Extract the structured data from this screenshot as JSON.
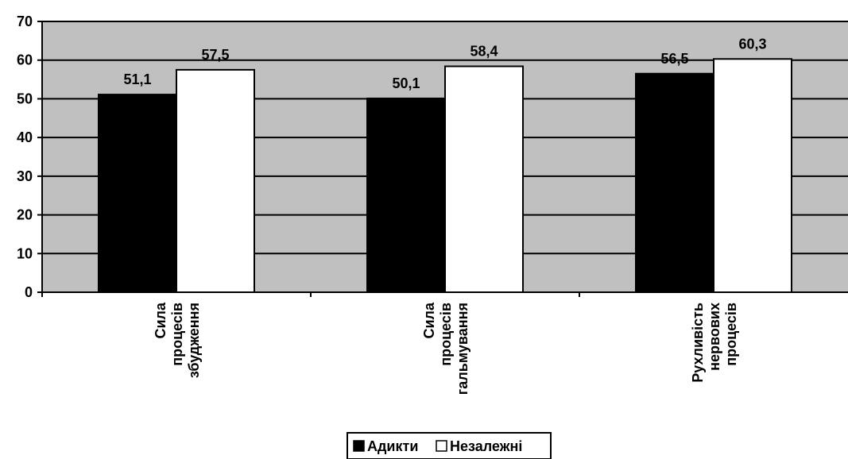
{
  "chart_data": {
    "type": "bar",
    "categories": [
      [
        "Сила",
        "процесів",
        "збудження"
      ],
      [
        "Сила",
        "процесів",
        "гальмування"
      ],
      [
        "Рухливість",
        "нервових",
        "процесів"
      ]
    ],
    "series": [
      {
        "name": "Адикти",
        "values": [
          51.1,
          50.1,
          56.5
        ],
        "labels": [
          "51,1",
          "50,1",
          "56,5"
        ],
        "color": "#000000"
      },
      {
        "name": "Незалежні",
        "values": [
          57.5,
          58.4,
          60.3
        ],
        "labels": [
          "57,5",
          "58,4",
          "60,3"
        ],
        "color": "#ffffff"
      }
    ],
    "ylim": [
      0,
      70
    ],
    "yticks": [
      0,
      10,
      20,
      30,
      40,
      50,
      60,
      70
    ],
    "grid": true,
    "plot_background": "#c0c0c0",
    "legend_position": "bottom-center",
    "title": "",
    "xlabel": "",
    "ylabel": ""
  }
}
